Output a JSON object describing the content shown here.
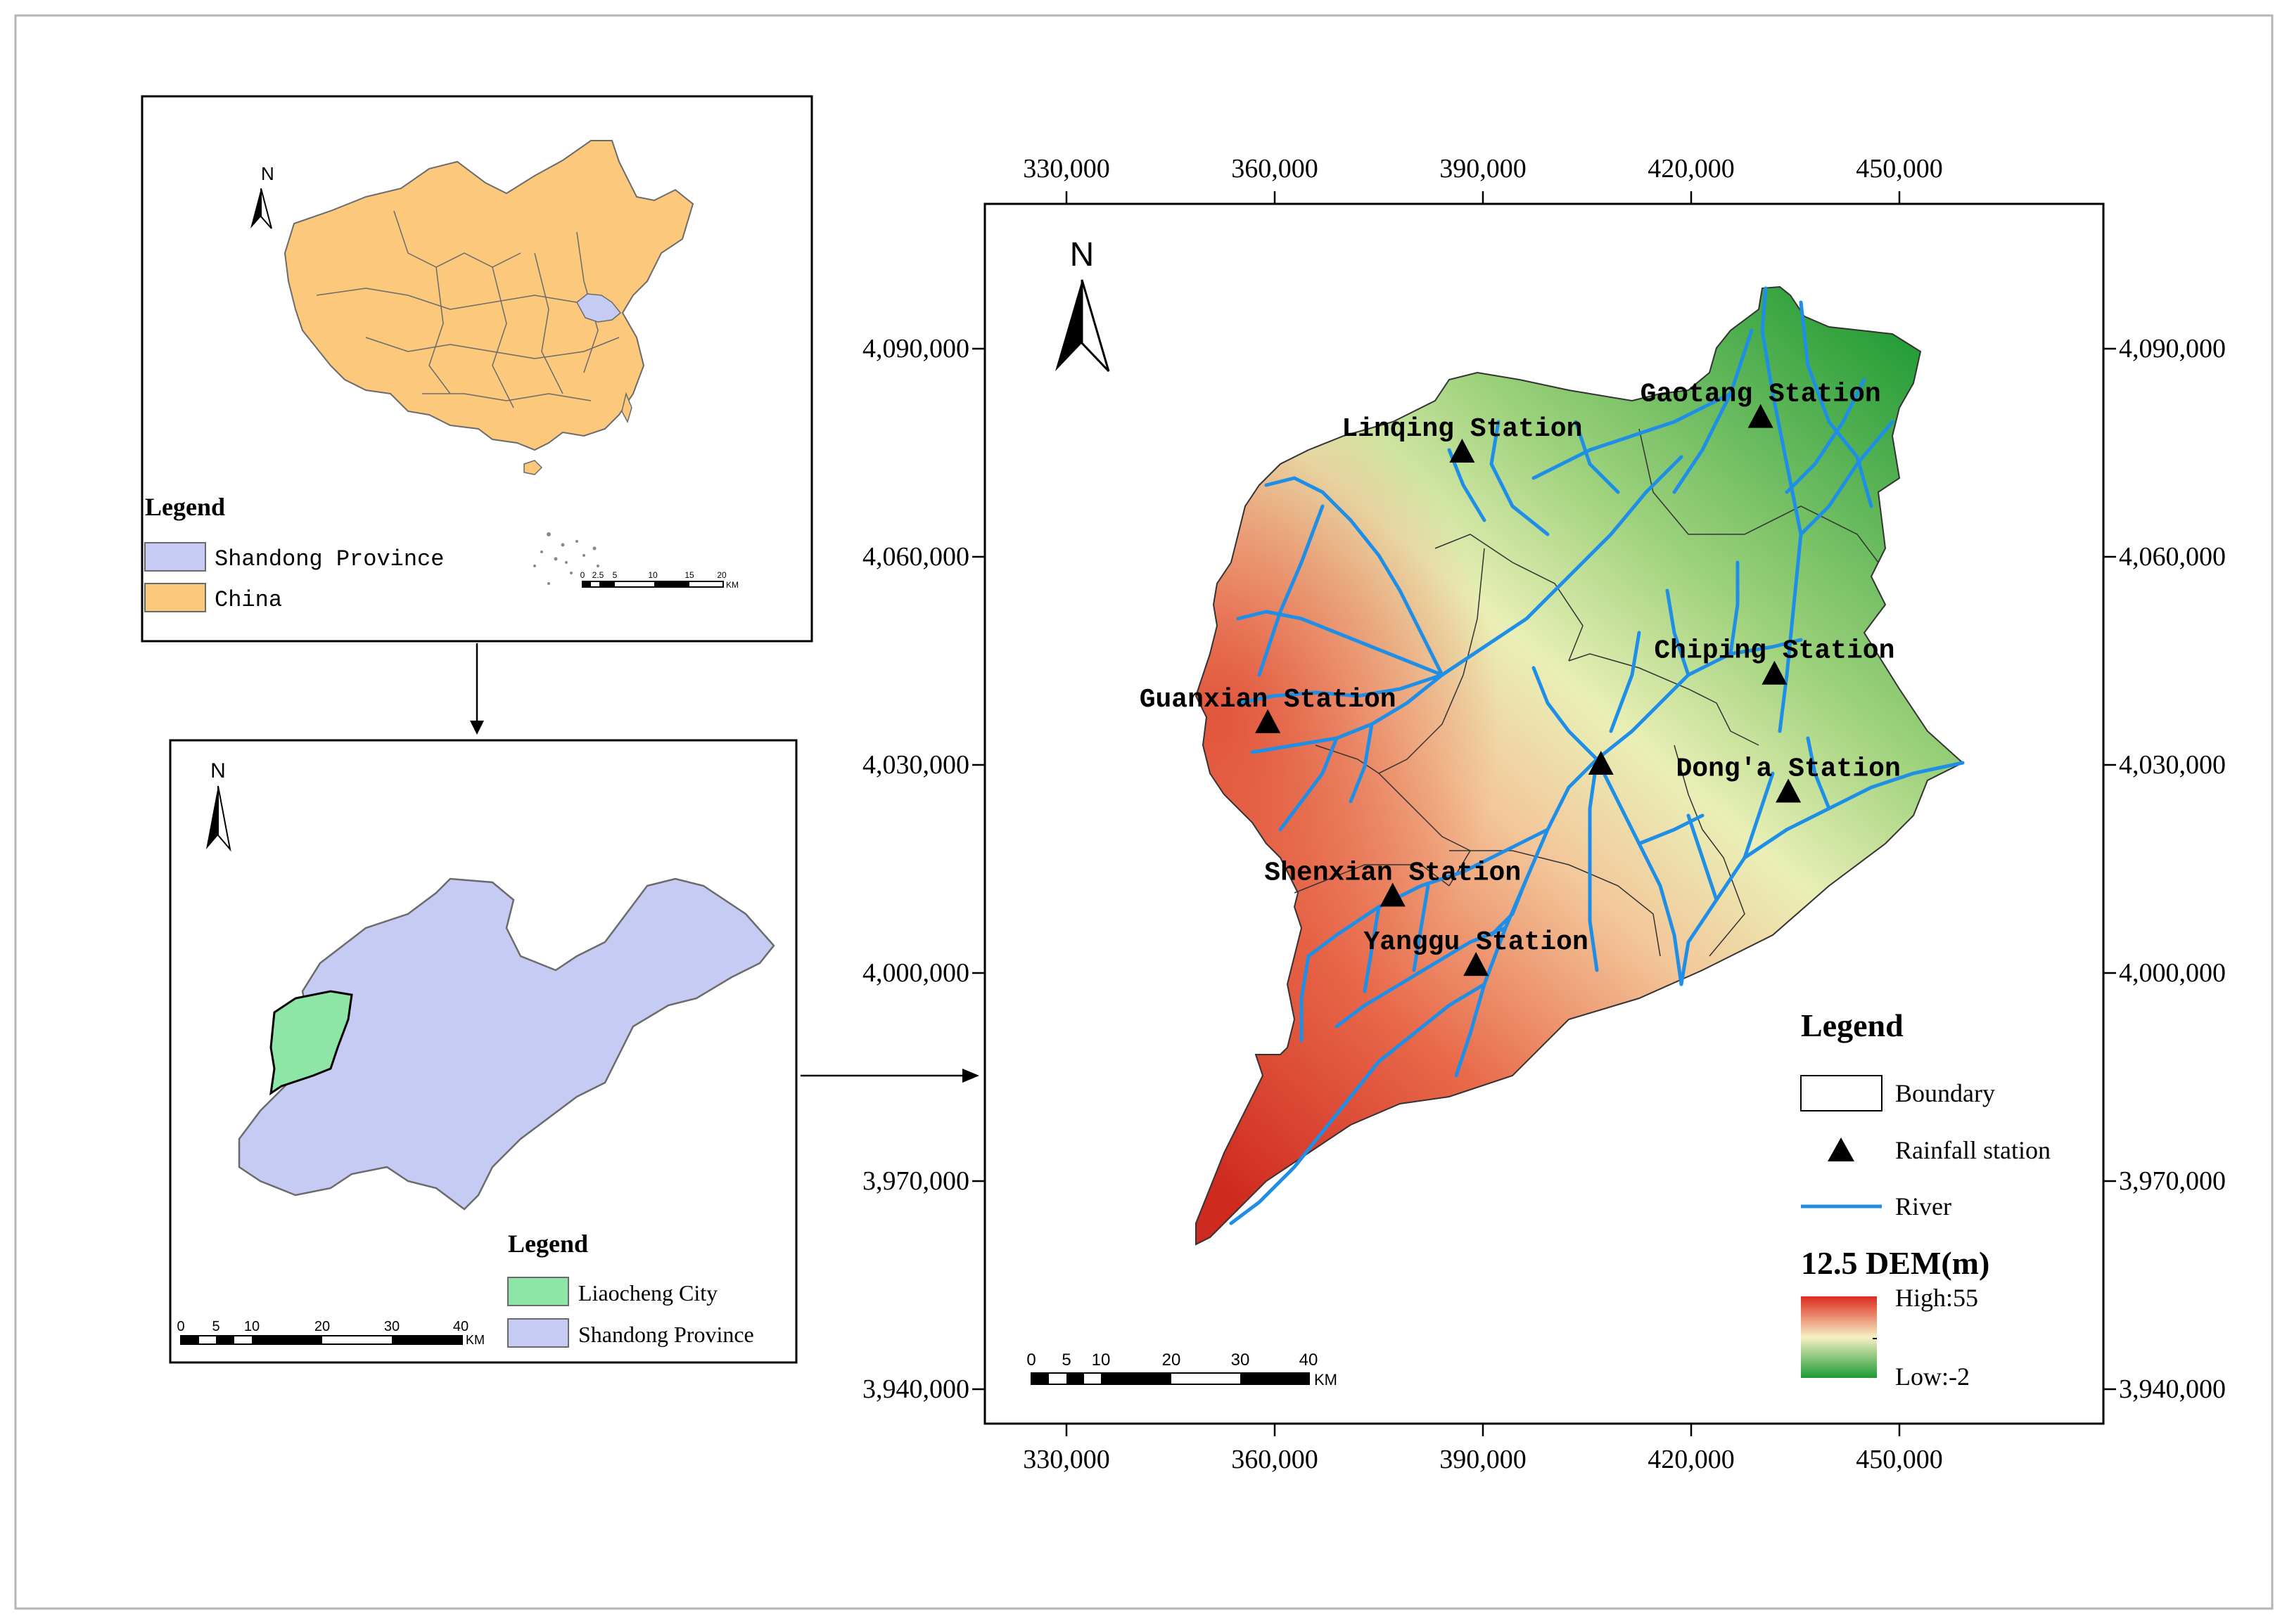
{
  "colors": {
    "frame": "#b5b5b5",
    "china_fill": "#fcc87c",
    "china_border": "#6b6b6b",
    "shandong_fill": "#c5cbf2",
    "liaocheng_fill": "#8de6a6",
    "river": "#1f8ee6",
    "dem_high": "#dc2a1e",
    "dem_mid": "#f7f0c4",
    "dem_low": "#1f9a34",
    "station": "#000000"
  },
  "china_panel": {
    "north_label": "N",
    "legend_title": "Legend",
    "legend_items": [
      {
        "label": "Shandong Province",
        "color": "#c5cbf2"
      },
      {
        "label": "China",
        "color": "#fcc87c"
      }
    ],
    "scalebar_ticks": [
      "0",
      "2.5",
      "5",
      "10",
      "15",
      "20"
    ],
    "scalebar_unit": "KM"
  },
  "shandong_panel": {
    "north_label": "N",
    "legend_title": "Legend",
    "legend_items": [
      {
        "label": "Liaocheng City",
        "color": "#8de6a6"
      },
      {
        "label": "Shandong Province",
        "color": "#c5cbf2"
      }
    ],
    "scalebar_ticks": [
      "0",
      "5",
      "10",
      "20",
      "30",
      "40"
    ],
    "scalebar_unit": "KM"
  },
  "main_map": {
    "north_label": "N",
    "x_ticks": [
      "330,000",
      "360,000",
      "390,000",
      "420,000",
      "450,000"
    ],
    "y_ticks": [
      "4,090,000",
      "4,060,000",
      "4,030,000",
      "4,000,000",
      "3,970,000",
      "3,940,000"
    ],
    "stations": [
      {
        "name": "Gaotang Station",
        "e": 430000,
        "n": 4080000
      },
      {
        "name": "Linqing Station",
        "e": 387000,
        "n": 4075000
      },
      {
        "name": "Chiping Station",
        "e": 432000,
        "n": 4043000
      },
      {
        "name": "Guanxian Station",
        "e": 359000,
        "n": 4036000
      },
      {
        "name": "",
        "e": 407000,
        "n": 4030000
      },
      {
        "name": "Dong'a Station",
        "e": 434000,
        "n": 4026000
      },
      {
        "name": "Shenxian Station",
        "e": 377000,
        "n": 4011000
      },
      {
        "name": "Yanggu Station",
        "e": 389000,
        "n": 4001000
      }
    ],
    "legend": {
      "title": "Legend",
      "items": [
        {
          "label": "Boundary",
          "symbol": "box"
        },
        {
          "label": "Rainfall station",
          "symbol": "triangle"
        },
        {
          "label": "River",
          "symbol": "line"
        }
      ],
      "dem_title": "12.5 DEM(m)",
      "dem_high": "High:55",
      "dem_low": "Low:-2"
    },
    "scalebar_ticks": [
      "0",
      "5",
      "10",
      "20",
      "30",
      "40"
    ],
    "scalebar_unit": "KM"
  }
}
